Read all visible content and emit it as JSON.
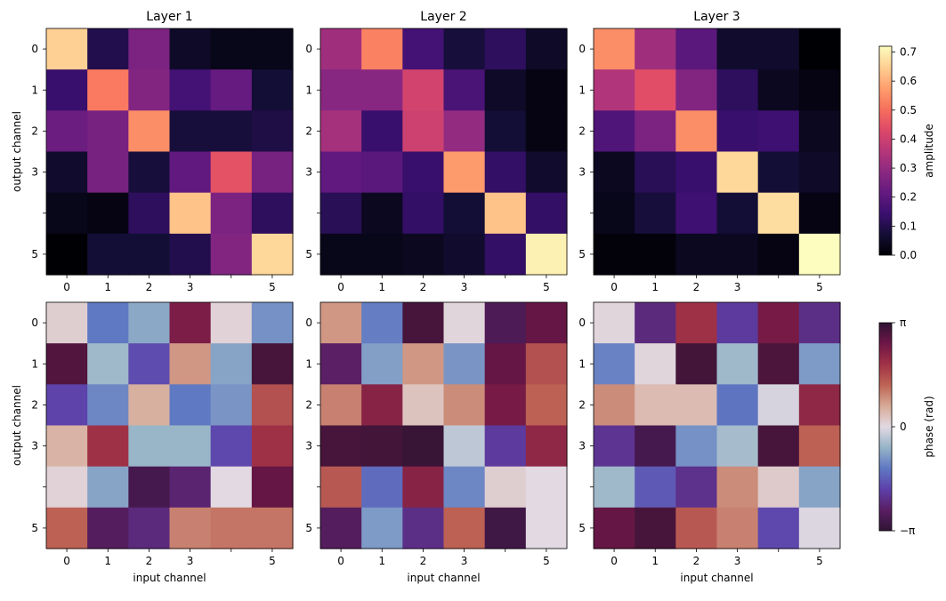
{
  "figure": {
    "panel_titles": [
      "Layer 1",
      "Layer 2",
      "Layer 3"
    ],
    "ylabel": "output channel",
    "xlabel": "input channel",
    "ticks": {
      "x": [
        "0",
        "1",
        "2",
        "3",
        "",
        "5"
      ],
      "y": [
        "0",
        "1",
        "2",
        "3",
        "",
        "5"
      ]
    },
    "amp_colorbar": {
      "label": "amplitude",
      "min": 0,
      "max": 0.72,
      "ticks": [
        "0.0",
        "0.1",
        "0.2",
        "0.3",
        "0.4",
        "0.5",
        "0.6",
        "0.7"
      ],
      "colormap": "magma"
    },
    "phase_colorbar": {
      "label": "phase (rad)",
      "min": -3.14159,
      "max": 3.14159,
      "ticks": [
        "−π",
        "0",
        "π"
      ],
      "colormap": "twilight"
    }
  },
  "chart_data": [
    {
      "type": "heatmap",
      "title": "Layer 1",
      "row": "amplitude",
      "xlabel": "",
      "ylabel": "output channel",
      "matrix": [
        [
          0.65,
          0.1,
          0.26,
          0.05,
          0.03,
          0.03
        ],
        [
          0.14,
          0.52,
          0.27,
          0.16,
          0.22,
          0.07
        ],
        [
          0.23,
          0.25,
          0.55,
          0.08,
          0.08,
          0.09
        ],
        [
          0.06,
          0.25,
          0.08,
          0.21,
          0.45,
          0.25
        ],
        [
          0.03,
          0.02,
          0.12,
          0.63,
          0.26,
          0.12
        ],
        [
          0.0,
          0.07,
          0.07,
          0.1,
          0.27,
          0.66
        ]
      ]
    },
    {
      "type": "heatmap",
      "title": "Layer 2",
      "row": "amplitude",
      "xlabel": "",
      "ylabel": "",
      "matrix": [
        [
          0.32,
          0.53,
          0.16,
          0.08,
          0.12,
          0.05
        ],
        [
          0.28,
          0.28,
          0.41,
          0.17,
          0.05,
          0.02
        ],
        [
          0.33,
          0.14,
          0.4,
          0.3,
          0.07,
          0.02
        ],
        [
          0.21,
          0.2,
          0.14,
          0.57,
          0.13,
          0.06
        ],
        [
          0.11,
          0.04,
          0.13,
          0.07,
          0.63,
          0.13
        ],
        [
          0.03,
          0.03,
          0.04,
          0.06,
          0.13,
          0.7
        ]
      ]
    },
    {
      "type": "heatmap",
      "title": "Layer 3",
      "row": "amplitude",
      "xlabel": "",
      "ylabel": "",
      "matrix": [
        [
          0.55,
          0.32,
          0.2,
          0.06,
          0.06,
          0.0
        ],
        [
          0.35,
          0.44,
          0.27,
          0.12,
          0.04,
          0.02
        ],
        [
          0.18,
          0.26,
          0.55,
          0.14,
          0.15,
          0.04
        ],
        [
          0.04,
          0.11,
          0.14,
          0.66,
          0.07,
          0.05
        ],
        [
          0.03,
          0.08,
          0.15,
          0.07,
          0.67,
          0.02
        ],
        [
          0.01,
          0.01,
          0.04,
          0.04,
          0.02,
          0.72
        ]
      ]
    },
    {
      "type": "heatmap",
      "title": "",
      "row": "phase",
      "xlabel": "input channel",
      "ylabel": "output channel",
      "matrix": [
        [
          0.15,
          -1.25,
          -0.75,
          2.35,
          0.1,
          -1.0
        ],
        [
          2.8,
          -0.55,
          -1.75,
          0.8,
          -0.8,
          2.9
        ],
        [
          -1.85,
          -1.1,
          0.55,
          -1.25,
          -0.95,
          1.5
        ],
        [
          0.5,
          1.9,
          -0.6,
          -0.6,
          -1.8,
          1.9
        ],
        [
          0.1,
          -0.8,
          -2.8,
          -2.4,
          0.0,
          2.6
        ],
        [
          1.3,
          -2.6,
          -2.3,
          1.0,
          1.1,
          1.1
        ]
      ]
    },
    {
      "type": "heatmap",
      "title": "",
      "row": "phase",
      "xlabel": "input channel",
      "ylabel": "",
      "matrix": [
        [
          0.8,
          -1.2,
          2.9,
          0.05,
          -2.7,
          2.6
        ],
        [
          -2.5,
          -0.85,
          0.8,
          -0.95,
          2.6,
          1.5
        ],
        [
          1.0,
          2.2,
          0.3,
          0.9,
          2.4,
          1.3
        ],
        [
          2.9,
          2.95,
          3.05,
          -0.3,
          -2.0,
          2.1
        ],
        [
          1.4,
          -1.4,
          2.2,
          -1.1,
          0.15,
          0.0
        ],
        [
          -2.6,
          -0.9,
          -2.2,
          1.3,
          -2.9,
          0.0
        ]
      ]
    },
    {
      "type": "heatmap",
      "title": "",
      "row": "phase",
      "xlabel": "input channel",
      "ylabel": "",
      "matrix": [
        [
          0.05,
          -2.3,
          1.9,
          -2.0,
          2.4,
          -2.2
        ],
        [
          -1.15,
          0.05,
          2.95,
          -0.55,
          2.85,
          -0.9
        ],
        [
          0.9,
          0.4,
          0.4,
          -1.3,
          -0.1,
          2.1
        ],
        [
          -2.1,
          -2.8,
          -1.0,
          -0.5,
          2.9,
          1.3
        ],
        [
          -0.55,
          -1.6,
          -2.15,
          0.9,
          0.2,
          -0.8
        ],
        [
          2.6,
          2.9,
          1.4,
          1.0,
          -1.8,
          -0.05
        ]
      ]
    }
  ]
}
